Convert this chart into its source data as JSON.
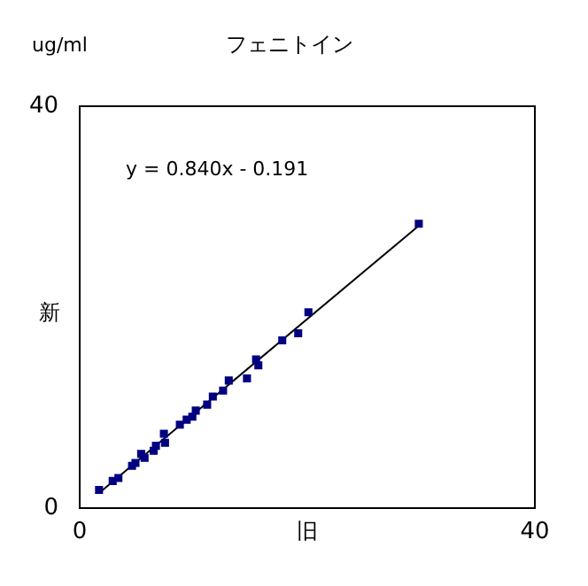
{
  "chart_data": {
    "type": "scatter",
    "title": "フェニトイン",
    "xlabel": "旧",
    "ylabel": "新",
    "annotations": [
      "ug/ml",
      "y = 0.840x - 0.191"
    ],
    "xlim": [
      0,
      40
    ],
    "ylim": [
      0,
      40
    ],
    "xticks": [
      0,
      40
    ],
    "yticks": [
      0,
      40
    ],
    "legend": false,
    "marker": "square",
    "series": [
      {
        "color": "#000080",
        "x": [
          1.7,
          2.9,
          3.4,
          4.6,
          4.9,
          5.4,
          5.7,
          6.5,
          6.7,
          7.4,
          7.5,
          8.8,
          9.4,
          9.9,
          10.2,
          11.2,
          11.7,
          12.6,
          13.1,
          14.7,
          15.5,
          15.7,
          17.8,
          19.2,
          20.1,
          29.8
        ],
        "values": [
          1.8,
          2.7,
          3.0,
          4.2,
          4.5,
          5.4,
          5.0,
          5.7,
          6.2,
          7.4,
          6.5,
          8.3,
          8.8,
          9.1,
          9.7,
          10.3,
          11.1,
          11.7,
          12.7,
          12.9,
          14.8,
          14.2,
          16.7,
          17.4,
          19.5,
          28.3
        ]
      },
      {
        "type": "line",
        "color": "#000000",
        "marker": "none",
        "x": [
          1.7,
          29.8
        ],
        "values": [
          1.5,
          28.1
        ]
      }
    ]
  }
}
